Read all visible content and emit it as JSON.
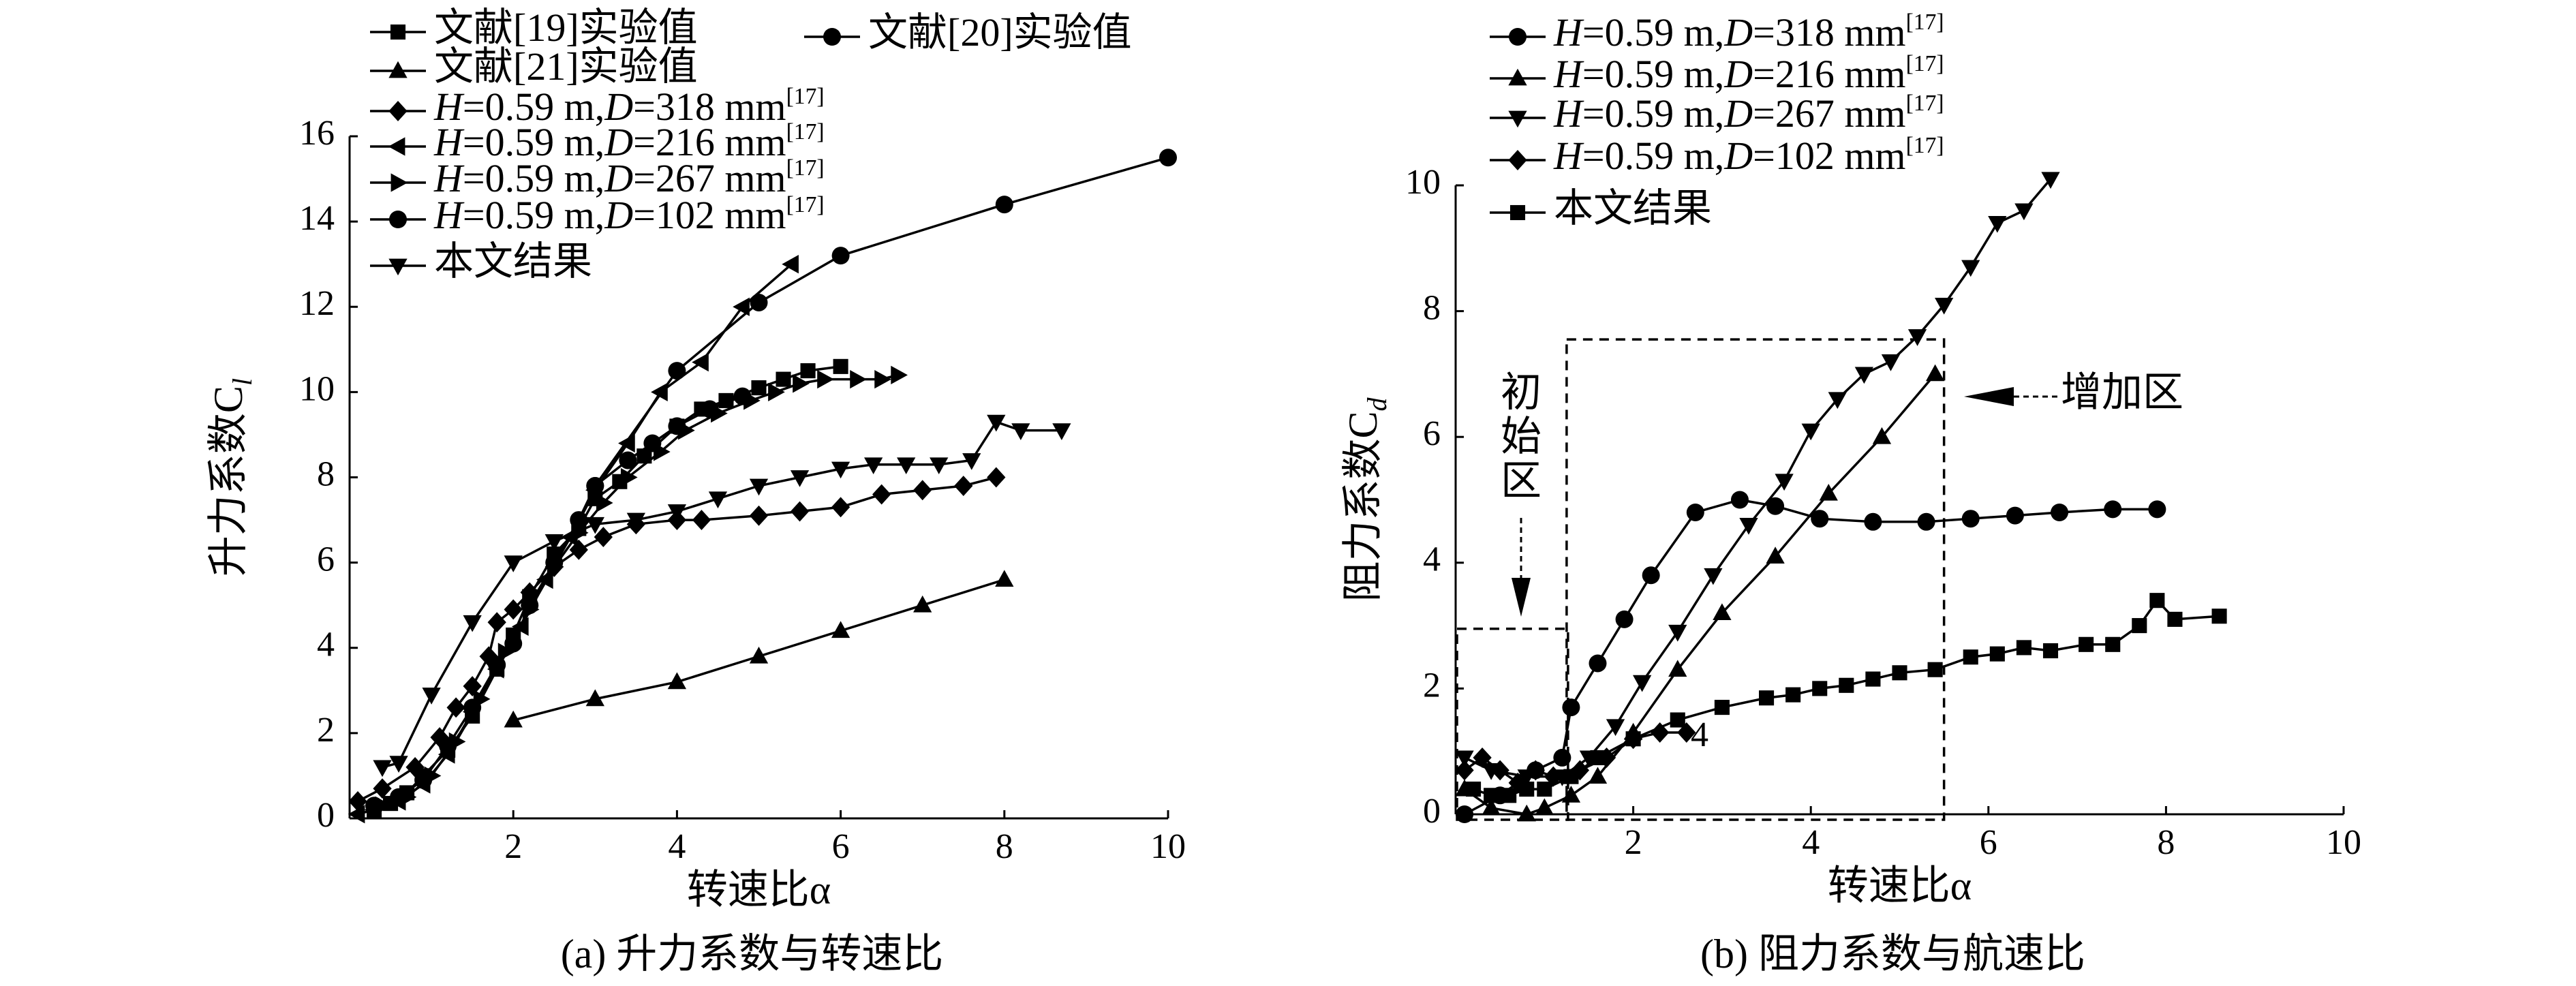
{
  "chart_data": [
    {
      "type": "line",
      "caption": "(a) 升力系数与转速比",
      "xlabel": "转速比α",
      "ylabel": "升力系数C",
      "ylabel_sub": "l",
      "xlim": [
        0,
        10
      ],
      "ylim": [
        0,
        16
      ],
      "xticks": [
        2,
        4,
        6,
        8,
        10
      ],
      "yticks": [
        0,
        2,
        4,
        6,
        8,
        10,
        12,
        14,
        16
      ],
      "legend": {
        "placement": "top-left"
      },
      "series": [
        {
          "name": "文献[19]实验值",
          "label": [
            "文献[19]实验值"
          ],
          "marker": "square",
          "points": [
            [
              0.3,
              0.2
            ],
            [
              0.5,
              0.35
            ],
            [
              0.7,
              0.6
            ],
            [
              0.9,
              1.0
            ],
            [
              1.2,
              1.6
            ],
            [
              1.5,
              2.4
            ],
            [
              1.8,
              3.5
            ],
            [
              2.0,
              4.3
            ],
            [
              2.2,
              5.2
            ],
            [
              2.5,
              6.2
            ],
            [
              2.8,
              6.8
            ],
            [
              3.0,
              7.5
            ],
            [
              3.3,
              7.9
            ],
            [
              3.6,
              8.5
            ],
            [
              4.0,
              9.2
            ],
            [
              4.3,
              9.6
            ],
            [
              4.6,
              9.8
            ],
            [
              5.0,
              10.1
            ],
            [
              5.3,
              10.3
            ],
            [
              5.6,
              10.5
            ],
            [
              6.0,
              10.6
            ]
          ]
        },
        {
          "name": "文献[20]实验值",
          "label": [
            "文献[20]实验值"
          ],
          "marker": "circle",
          "points": [
            [
              3.0,
              7.8
            ],
            [
              4.0,
              10.5
            ],
            [
              5.0,
              12.1
            ],
            [
              6.0,
              13.2
            ],
            [
              8.0,
              14.4
            ],
            [
              10.0,
              15.5
            ]
          ]
        },
        {
          "name": "文献[21]实验值",
          "label": [
            "文献[21]实验值"
          ],
          "marker": "triangle-up",
          "points": [
            [
              2.0,
              2.3
            ],
            [
              3.0,
              2.8
            ],
            [
              4.0,
              3.2
            ],
            [
              5.0,
              3.8
            ],
            [
              6.0,
              4.4
            ],
            [
              7.0,
              5.0
            ],
            [
              8.0,
              5.6
            ]
          ]
        },
        {
          "name": "H=0.59 m,D=318 mm[17]",
          "label": [
            "H",
            "=0.59 m,",
            "D",
            "=318 mm",
            "[17]"
          ],
          "marker": "diamond",
          "points": [
            [
              0.1,
              0.4
            ],
            [
              0.4,
              0.7
            ],
            [
              0.8,
              1.2
            ],
            [
              1.1,
              1.9
            ],
            [
              1.3,
              2.6
            ],
            [
              1.5,
              3.1
            ],
            [
              1.7,
              3.8
            ],
            [
              1.8,
              4.6
            ],
            [
              2.0,
              4.9
            ],
            [
              2.2,
              5.3
            ],
            [
              2.5,
              5.9
            ],
            [
              2.8,
              6.3
            ],
            [
              3.1,
              6.6
            ],
            [
              3.5,
              6.9
            ],
            [
              4.0,
              7.0
            ],
            [
              4.3,
              7.0
            ],
            [
              5.0,
              7.1
            ],
            [
              5.5,
              7.2
            ],
            [
              6.0,
              7.3
            ],
            [
              6.5,
              7.6
            ],
            [
              7.0,
              7.7
            ],
            [
              7.5,
              7.8
            ],
            [
              7.9,
              8.0
            ]
          ]
        },
        {
          "name": "H=0.59 m,D=216 mm[17]",
          "label": [
            "H",
            "=0.59 m,",
            "D",
            "=216 mm",
            "[17]"
          ],
          "marker": "triangle-left",
          "points": [
            [
              0.1,
              0.1
            ],
            [
              0.3,
              0.2
            ],
            [
              0.6,
              0.4
            ],
            [
              0.9,
              0.8
            ],
            [
              1.2,
              1.5
            ],
            [
              1.5,
              2.5
            ],
            [
              1.8,
              3.5
            ],
            [
              2.1,
              4.5
            ],
            [
              2.4,
              5.6
            ],
            [
              2.7,
              6.6
            ],
            [
              3.0,
              7.7
            ],
            [
              3.4,
              8.8
            ],
            [
              3.8,
              10.0
            ],
            [
              4.3,
              10.7
            ],
            [
              4.8,
              12.0
            ],
            [
              5.4,
              13.0
            ]
          ]
        },
        {
          "name": "H=0.59 m,D=267 mm[17]",
          "label": [
            "H",
            "=0.59 m,",
            "D",
            "=267 mm",
            "[17]"
          ],
          "marker": "triangle-right",
          "points": [
            [
              0.4,
              0.3
            ],
            [
              0.7,
              0.5
            ],
            [
              1.0,
              1.0
            ],
            [
              1.3,
              1.8
            ],
            [
              1.6,
              2.8
            ],
            [
              1.9,
              3.9
            ],
            [
              2.2,
              4.9
            ],
            [
              2.5,
              5.9
            ],
            [
              2.8,
              6.7
            ],
            [
              3.1,
              7.4
            ],
            [
              3.4,
              8.0
            ],
            [
              3.8,
              8.6
            ],
            [
              4.1,
              9.1
            ],
            [
              4.5,
              9.5
            ],
            [
              4.9,
              9.8
            ],
            [
              5.2,
              10.0
            ],
            [
              5.5,
              10.2
            ],
            [
              5.8,
              10.3
            ],
            [
              6.2,
              10.3
            ],
            [
              6.5,
              10.3
            ],
            [
              6.7,
              10.4
            ]
          ]
        },
        {
          "name": "H=0.59 m,D=102 mm[17]",
          "label": [
            "H",
            "=0.59 m,",
            "D",
            "=102 mm",
            "[17]"
          ],
          "marker": "circle",
          "points": [
            [
              0.3,
              0.3
            ],
            [
              0.6,
              0.5
            ],
            [
              0.9,
              0.9
            ],
            [
              1.2,
              1.7
            ],
            [
              1.5,
              2.6
            ],
            [
              1.8,
              3.6
            ],
            [
              2.0,
              4.1
            ],
            [
              2.2,
              5.0
            ],
            [
              2.5,
              6.0
            ],
            [
              2.8,
              7.0
            ],
            [
              3.0,
              7.8
            ],
            [
              3.4,
              8.4
            ],
            [
              3.7,
              8.8
            ],
            [
              4.0,
              9.2
            ],
            [
              4.4,
              9.6
            ],
            [
              4.8,
              9.9
            ]
          ]
        },
        {
          "name": "本文结果",
          "label": [
            "本文结果"
          ],
          "marker": "triangle-down",
          "points": [
            [
              0.4,
              1.2
            ],
            [
              0.6,
              1.3
            ],
            [
              1.0,
              2.9
            ],
            [
              1.5,
              4.6
            ],
            [
              2.0,
              6.0
            ],
            [
              2.5,
              6.5
            ],
            [
              3.0,
              6.9
            ],
            [
              3.5,
              7.0
            ],
            [
              4.0,
              7.2
            ],
            [
              4.5,
              7.5
            ],
            [
              5.0,
              7.8
            ],
            [
              5.5,
              8.0
            ],
            [
              6.0,
              8.2
            ],
            [
              6.4,
              8.3
            ],
            [
              6.8,
              8.3
            ],
            [
              7.2,
              8.3
            ],
            [
              7.6,
              8.4
            ],
            [
              7.9,
              9.3
            ],
            [
              8.2,
              9.1
            ],
            [
              8.7,
              9.1
            ]
          ]
        }
      ]
    },
    {
      "type": "line",
      "caption": "(b) 阻力系数与航速比",
      "xlabel": "转速比α",
      "ylabel": "阻力系数C",
      "ylabel_sub": "d",
      "xlim": [
        0,
        10
      ],
      "ylim": [
        0,
        10
      ],
      "xticks": [
        2,
        4,
        6,
        8,
        10
      ],
      "yticks": [
        0,
        2,
        4,
        6,
        8,
        10
      ],
      "legend": {
        "placement": "top-left"
      },
      "series": [
        {
          "name": "H=0.59 m,D=318 mm[17]",
          "label": [
            "H",
            "=0.59 m,",
            "D",
            "=318 mm",
            "[17]"
          ],
          "marker": "circle",
          "points": [
            [
              0.1,
              0.0
            ],
            [
              0.5,
              0.3
            ],
            [
              0.9,
              0.7
            ],
            [
              1.2,
              0.9
            ],
            [
              1.3,
              1.7
            ],
            [
              1.6,
              2.4
            ],
            [
              1.9,
              3.1
            ],
            [
              2.2,
              3.8
            ],
            [
              2.7,
              4.8
            ],
            [
              3.2,
              5.0
            ],
            [
              3.6,
              4.9
            ],
            [
              4.1,
              4.7
            ],
            [
              4.7,
              4.65
            ],
            [
              5.3,
              4.65
            ],
            [
              5.8,
              4.7
            ],
            [
              6.3,
              4.75
            ],
            [
              6.8,
              4.8
            ],
            [
              7.4,
              4.85
            ],
            [
              7.9,
              4.85
            ]
          ]
        },
        {
          "name": "H=0.59 m,D=216 mm[17]",
          "label": [
            "H",
            "=0.59 m,",
            "D",
            "=216 mm",
            "[17]"
          ],
          "marker": "triangle-up",
          "points": [
            [
              0.1,
              0.4
            ],
            [
              0.4,
              0.1
            ],
            [
              0.8,
              0.0
            ],
            [
              1.0,
              0.1
            ],
            [
              1.3,
              0.3
            ],
            [
              1.6,
              0.6
            ],
            [
              2.0,
              1.3
            ],
            [
              2.5,
              2.3
            ],
            [
              3.0,
              3.2
            ],
            [
              3.6,
              4.1
            ],
            [
              4.2,
              5.1
            ],
            [
              4.8,
              6.0
            ],
            [
              5.4,
              7.0
            ]
          ]
        },
        {
          "name": "H=0.59 m,D=267 mm[17]",
          "label": [
            "H",
            "=0.59 m,",
            "D",
            "=267 mm",
            "[17]"
          ],
          "marker": "triangle-down",
          "points": [
            [
              0.1,
              0.9
            ],
            [
              0.4,
              0.7
            ],
            [
              0.8,
              0.6
            ],
            [
              1.2,
              0.6
            ],
            [
              1.5,
              0.9
            ],
            [
              1.8,
              1.4
            ],
            [
              2.1,
              2.1
            ],
            [
              2.5,
              2.9
            ],
            [
              2.9,
              3.8
            ],
            [
              3.3,
              4.6
            ],
            [
              3.7,
              5.3
            ],
            [
              4.0,
              6.1
            ],
            [
              4.3,
              6.6
            ],
            [
              4.6,
              7.0
            ],
            [
              4.9,
              7.2
            ],
            [
              5.2,
              7.6
            ],
            [
              5.5,
              8.1
            ],
            [
              5.8,
              8.7
            ],
            [
              6.1,
              9.4
            ],
            [
              6.4,
              9.6
            ],
            [
              6.7,
              10.1
            ]
          ]
        },
        {
          "name": "H=0.59 m,D=102 mm[17]",
          "label": [
            "H",
            "=0.59 m,",
            "D",
            "=102 mm",
            "[17]"
          ],
          "marker": "diamond",
          "points": [
            [
              0.1,
              0.7
            ],
            [
              0.3,
              0.9
            ],
            [
              0.5,
              0.7
            ],
            [
              0.7,
              0.5
            ],
            [
              0.9,
              0.7
            ],
            [
              1.1,
              0.6
            ],
            [
              1.4,
              0.7
            ],
            [
              1.7,
              0.9
            ],
            [
              2.0,
              1.2
            ],
            [
              2.3,
              1.3
            ],
            [
              2.6,
              1.3
            ]
          ]
        },
        {
          "name": "本文结果",
          "label": [
            "本文结果"
          ],
          "marker": "square",
          "points": [
            [
              0.2,
              0.4
            ],
            [
              0.4,
              0.3
            ],
            [
              0.6,
              0.3
            ],
            [
              0.8,
              0.4
            ],
            [
              1.0,
              0.4
            ],
            [
              1.3,
              0.6
            ],
            [
              1.6,
              0.9
            ],
            [
              2.0,
              1.2
            ],
            [
              2.5,
              1.5
            ],
            [
              3.0,
              1.7
            ],
            [
              3.5,
              1.85
            ],
            [
              3.8,
              1.9
            ],
            [
              4.1,
              2.0
            ],
            [
              4.4,
              2.05
            ],
            [
              4.7,
              2.15
            ],
            [
              5.0,
              2.25
            ],
            [
              5.4,
              2.3
            ],
            [
              5.8,
              2.5
            ],
            [
              6.1,
              2.55
            ],
            [
              6.4,
              2.65
            ],
            [
              6.7,
              2.6
            ],
            [
              7.1,
              2.7
            ],
            [
              7.4,
              2.7
            ],
            [
              7.7,
              3.0
            ],
            [
              7.9,
              3.4
            ],
            [
              8.1,
              3.1
            ],
            [
              8.6,
              3.15
            ]
          ]
        }
      ],
      "annotations": {
        "initial_zone_label": [
          "初",
          "始",
          "区"
        ],
        "increase_zone_label": "增加区",
        "extra_label": "4",
        "initial_zone_range": {
          "x": [
            0,
            1.25
          ],
          "y": [
            0,
            2.95
          ]
        },
        "increase_zone_range": {
          "x": [
            1.25,
            5.5
          ],
          "y": [
            0,
            7.55
          ]
        }
      }
    }
  ]
}
